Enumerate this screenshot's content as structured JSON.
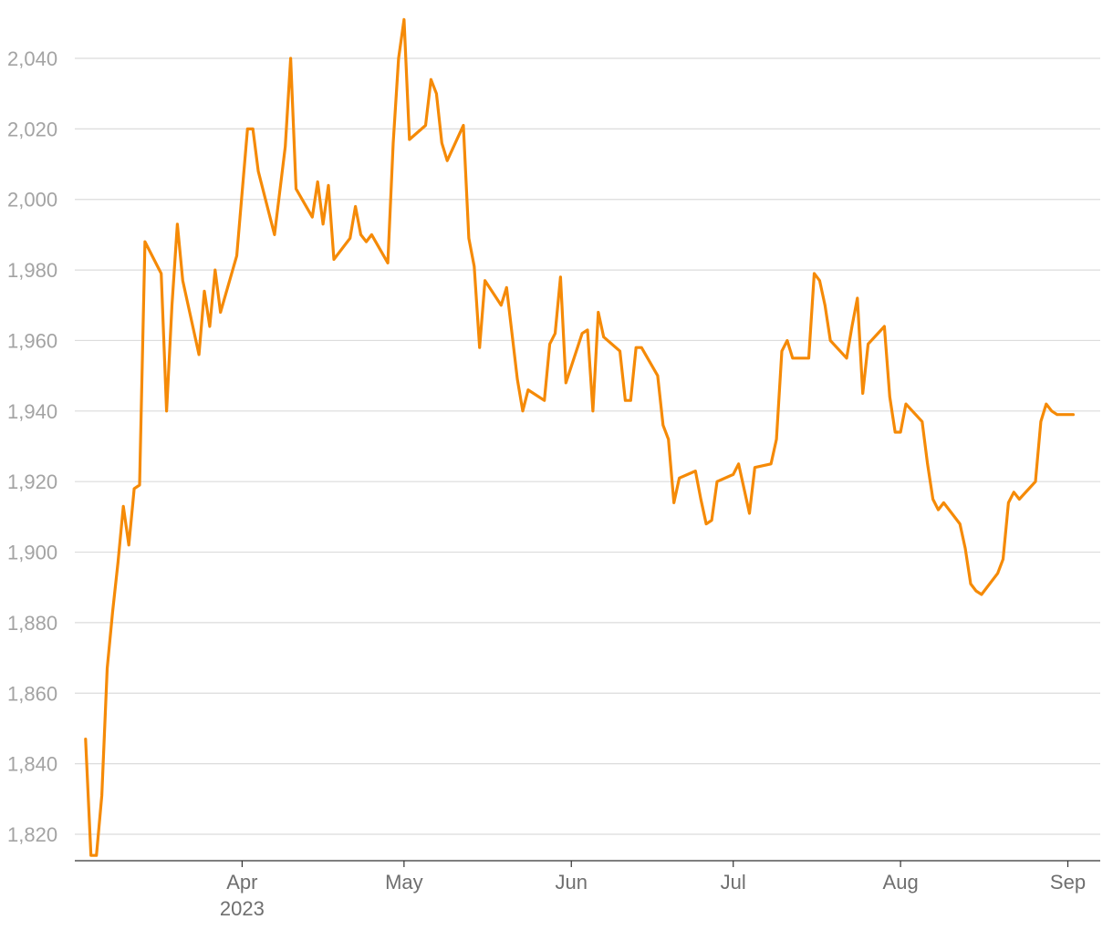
{
  "chart_data": {
    "type": "line",
    "x_axis": {
      "type": "date",
      "ticks": [
        {
          "date": "2023-04-01",
          "label": "Apr",
          "sublabel": "2023"
        },
        {
          "date": "2023-05-01",
          "label": "May",
          "sublabel": ""
        },
        {
          "date": "2023-06-01",
          "label": "Jun",
          "sublabel": ""
        },
        {
          "date": "2023-07-01",
          "label": "Jul",
          "sublabel": ""
        },
        {
          "date": "2023-08-01",
          "label": "Aug",
          "sublabel": ""
        },
        {
          "date": "2023-09-01",
          "label": "Sep",
          "sublabel": ""
        }
      ],
      "range": [
        "2023-03-01",
        "2023-09-07"
      ]
    },
    "y_axis": {
      "ticks": [
        1820,
        1840,
        1860,
        1880,
        1900,
        1920,
        1940,
        1960,
        1980,
        2000,
        2020,
        2040
      ],
      "tick_labels": [
        "1,820",
        "1,840",
        "1,860",
        "1,880",
        "1,900",
        "1,920",
        "1,940",
        "1,960",
        "1,980",
        "2,000",
        "2,020",
        "2,040"
      ],
      "range": [
        1812,
        2052
      ],
      "grid": true
    },
    "series": [
      {
        "color": "#f58a07",
        "points": [
          [
            "2023-03-03",
            1847
          ],
          [
            "2023-03-04",
            1814
          ],
          [
            "2023-03-05",
            1814
          ],
          [
            "2023-03-06",
            1831
          ],
          [
            "2023-03-07",
            1867
          ],
          [
            "2023-03-08",
            1883
          ],
          [
            "2023-03-09",
            1897
          ],
          [
            "2023-03-10",
            1913
          ],
          [
            "2023-03-11",
            1902
          ],
          [
            "2023-03-12",
            1918
          ],
          [
            "2023-03-13",
            1919
          ],
          [
            "2023-03-14",
            1988
          ],
          [
            "2023-03-17",
            1979
          ],
          [
            "2023-03-18",
            1940
          ],
          [
            "2023-03-19",
            1970
          ],
          [
            "2023-03-20",
            1993
          ],
          [
            "2023-03-21",
            1977
          ],
          [
            "2023-03-24",
            1956
          ],
          [
            "2023-03-25",
            1974
          ],
          [
            "2023-03-26",
            1964
          ],
          [
            "2023-03-27",
            1980
          ],
          [
            "2023-03-28",
            1968
          ],
          [
            "2023-03-31",
            1984
          ],
          [
            "2023-04-02",
            2020
          ],
          [
            "2023-04-03",
            2020
          ],
          [
            "2023-04-04",
            2008
          ],
          [
            "2023-04-07",
            1990
          ],
          [
            "2023-04-09",
            2015
          ],
          [
            "2023-04-10",
            2040
          ],
          [
            "2023-04-11",
            2003
          ],
          [
            "2023-04-14",
            1995
          ],
          [
            "2023-04-15",
            2005
          ],
          [
            "2023-04-16",
            1993
          ],
          [
            "2023-04-17",
            2004
          ],
          [
            "2023-04-18",
            1983
          ],
          [
            "2023-04-21",
            1989
          ],
          [
            "2023-04-22",
            1998
          ],
          [
            "2023-04-23",
            1990
          ],
          [
            "2023-04-24",
            1988
          ],
          [
            "2023-04-25",
            1990
          ],
          [
            "2023-04-28",
            1982
          ],
          [
            "2023-04-29",
            2016
          ],
          [
            "2023-04-30",
            2040
          ],
          [
            "2023-05-01",
            2051
          ],
          [
            "2023-05-02",
            2017
          ],
          [
            "2023-05-05",
            2021
          ],
          [
            "2023-05-06",
            2034
          ],
          [
            "2023-05-07",
            2030
          ],
          [
            "2023-05-08",
            2016
          ],
          [
            "2023-05-09",
            2011
          ],
          [
            "2023-05-12",
            2021
          ],
          [
            "2023-05-13",
            1989
          ],
          [
            "2023-05-14",
            1981
          ],
          [
            "2023-05-15",
            1958
          ],
          [
            "2023-05-16",
            1977
          ],
          [
            "2023-05-19",
            1970
          ],
          [
            "2023-05-20",
            1975
          ],
          [
            "2023-05-22",
            1949
          ],
          [
            "2023-05-23",
            1940
          ],
          [
            "2023-05-24",
            1946
          ],
          [
            "2023-05-27",
            1943
          ],
          [
            "2023-05-28",
            1959
          ],
          [
            "2023-05-29",
            1962
          ],
          [
            "2023-05-30",
            1978
          ],
          [
            "2023-05-31",
            1948
          ],
          [
            "2023-06-03",
            1962
          ],
          [
            "2023-06-04",
            1963
          ],
          [
            "2023-06-05",
            1940
          ],
          [
            "2023-06-06",
            1968
          ],
          [
            "2023-06-07",
            1961
          ],
          [
            "2023-06-10",
            1957
          ],
          [
            "2023-06-11",
            1943
          ],
          [
            "2023-06-12",
            1943
          ],
          [
            "2023-06-13",
            1958
          ],
          [
            "2023-06-14",
            1958
          ],
          [
            "2023-06-17",
            1950
          ],
          [
            "2023-06-18",
            1936
          ],
          [
            "2023-06-19",
            1932
          ],
          [
            "2023-06-20",
            1914
          ],
          [
            "2023-06-21",
            1921
          ],
          [
            "2023-06-24",
            1923
          ],
          [
            "2023-06-25",
            1915
          ],
          [
            "2023-06-26",
            1908
          ],
          [
            "2023-06-27",
            1909
          ],
          [
            "2023-06-28",
            1920
          ],
          [
            "2023-07-01",
            1922
          ],
          [
            "2023-07-02",
            1925
          ],
          [
            "2023-07-04",
            1911
          ],
          [
            "2023-07-05",
            1924
          ],
          [
            "2023-07-08",
            1925
          ],
          [
            "2023-07-09",
            1932
          ],
          [
            "2023-07-10",
            1957
          ],
          [
            "2023-07-11",
            1960
          ],
          [
            "2023-07-12",
            1955
          ],
          [
            "2023-07-15",
            1955
          ],
          [
            "2023-07-16",
            1979
          ],
          [
            "2023-07-17",
            1977
          ],
          [
            "2023-07-18",
            1970
          ],
          [
            "2023-07-19",
            1960
          ],
          [
            "2023-07-22",
            1955
          ],
          [
            "2023-07-23",
            1964
          ],
          [
            "2023-07-24",
            1972
          ],
          [
            "2023-07-25",
            1945
          ],
          [
            "2023-07-26",
            1959
          ],
          [
            "2023-07-29",
            1964
          ],
          [
            "2023-07-30",
            1944
          ],
          [
            "2023-07-31",
            1934
          ],
          [
            "2023-08-01",
            1934
          ],
          [
            "2023-08-02",
            1942
          ],
          [
            "2023-08-05",
            1937
          ],
          [
            "2023-08-06",
            1925
          ],
          [
            "2023-08-07",
            1915
          ],
          [
            "2023-08-08",
            1912
          ],
          [
            "2023-08-09",
            1914
          ],
          [
            "2023-08-12",
            1908
          ],
          [
            "2023-08-13",
            1901
          ],
          [
            "2023-08-14",
            1891
          ],
          [
            "2023-08-15",
            1889
          ],
          [
            "2023-08-16",
            1888
          ],
          [
            "2023-08-19",
            1894
          ],
          [
            "2023-08-20",
            1898
          ],
          [
            "2023-08-21",
            1914
          ],
          [
            "2023-08-22",
            1917
          ],
          [
            "2023-08-23",
            1915
          ],
          [
            "2023-08-26",
            1920
          ],
          [
            "2023-08-27",
            1937
          ],
          [
            "2023-08-28",
            1942
          ],
          [
            "2023-08-29",
            1940
          ],
          [
            "2023-08-30",
            1939
          ],
          [
            "2023-09-02",
            1939
          ]
        ]
      }
    ]
  }
}
